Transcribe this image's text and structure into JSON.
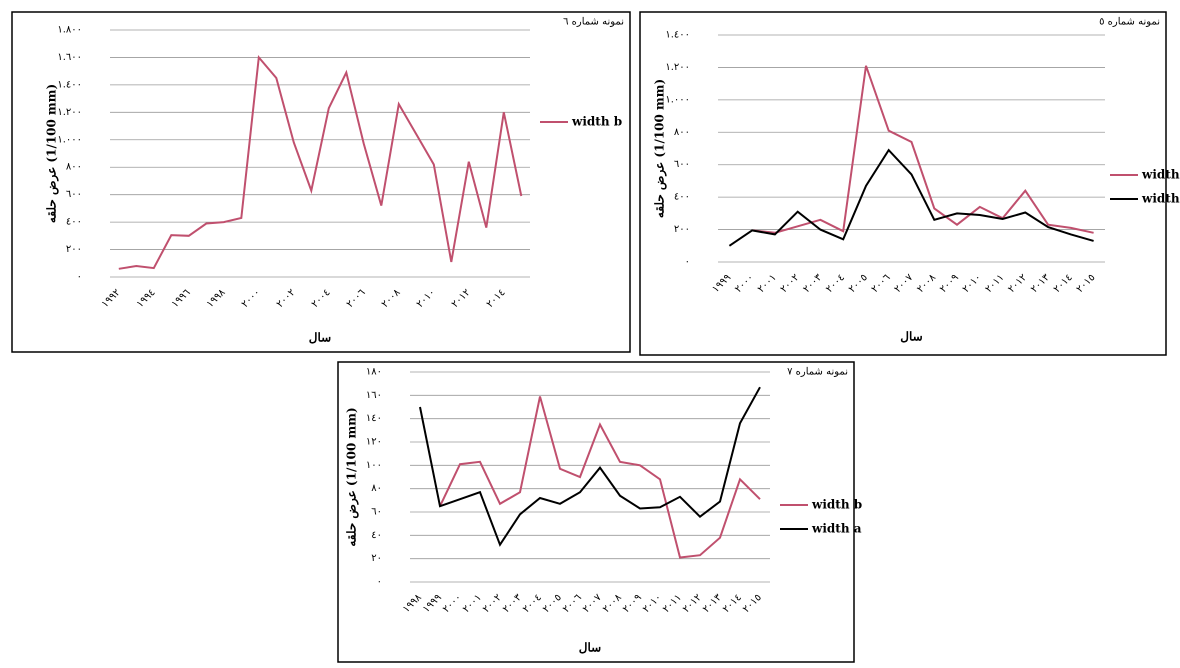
{
  "chart_data": [
    {
      "type": "line",
      "title": "نمونه شماره ٦",
      "xlabel": "سال",
      "ylabel": "عرض حلقه (1/100 mm)",
      "categories": [
        "١٩٩٢",
        null,
        "١٩٩٤",
        null,
        "١٩٩٦",
        null,
        "١٩٩٨",
        null,
        "٢٠٠٠",
        null,
        "٢٠٠٢",
        null,
        "٢٠٠٤",
        null,
        "٢٠٠٦",
        null,
        "٢٠٠٨",
        null,
        "٢٠١٠",
        null,
        "٢٠١٢",
        null,
        "٢٠١٤",
        null
      ],
      "series": [
        {
          "name": "width b",
          "color": "#c0506e",
          "values": [
            60,
            80,
            65,
            305,
            300,
            390,
            400,
            430,
            1600,
            1450,
            980,
            630,
            1230,
            1490,
            970,
            520,
            1260,
            1040,
            820,
            110,
            840,
            360,
            1200,
            590
          ]
        }
      ],
      "ylim": [
        0,
        1800
      ],
      "yticks": [
        {
          "value": 0,
          "label": "٠"
        },
        {
          "value": 200,
          "label": "٢٠٠"
        },
        {
          "value": 400,
          "label": "٤٠٠"
        },
        {
          "value": 600,
          "label": "٦٠٠"
        },
        {
          "value": 800,
          "label": "٨٠٠"
        },
        {
          "value": 1000,
          "label": "١.٠٠٠"
        },
        {
          "value": 1200,
          "label": "١.٢٠٠"
        },
        {
          "value": 1400,
          "label": "١.٤٠٠"
        },
        {
          "value": 1600,
          "label": "١.٦٠٠"
        },
        {
          "value": 1800,
          "label": "١.٨٠٠"
        }
      ],
      "grid": true
    },
    {
      "type": "line",
      "title": "نمونه شماره ٥",
      "xlabel": "سال",
      "ylabel": "عرض حلقه (1/100 mm)",
      "categories": [
        "١٩٩٩",
        "٢٠٠٠",
        "٢٠٠١",
        "٢٠٠٢",
        "٢٠٠٣",
        "٢٠٠٤",
        "٢٠٠٥",
        "٢٠٠٦",
        "٢٠٠٧",
        "٢٠٠٨",
        "٢٠٠٩",
        "٢٠١٠",
        "٢٠١١",
        "٢٠١٢",
        "٢٠١٣",
        "٢٠١٤",
        "٢٠١٥"
      ],
      "series": [
        {
          "name": "width b",
          "color": "#c0506e",
          "values": [
            null,
            195,
            180,
            220,
            260,
            190,
            1210,
            810,
            740,
            330,
            230,
            340,
            270,
            440,
            230,
            210,
            180
          ]
        },
        {
          "name": "width a",
          "color": "#000000",
          "values": [
            100,
            195,
            170,
            310,
            200,
            140,
            470,
            690,
            540,
            260,
            300,
            290,
            265,
            305,
            215,
            170,
            130
          ]
        }
      ],
      "ylim": [
        0,
        1400
      ],
      "yticks": [
        {
          "value": 0,
          "label": "٠"
        },
        {
          "value": 200,
          "label": "٢٠٠"
        },
        {
          "value": 400,
          "label": "٤٠٠"
        },
        {
          "value": 600,
          "label": "٦٠٠"
        },
        {
          "value": 800,
          "label": "٨٠٠"
        },
        {
          "value": 1000,
          "label": "١.٠٠٠"
        },
        {
          "value": 1200,
          "label": "١.٢٠٠"
        },
        {
          "value": 1400,
          "label": "١.٤٠٠"
        }
      ],
      "grid": true
    },
    {
      "type": "line",
      "title": "نمونه شماره ٧",
      "xlabel": "سال",
      "ylabel": "عرض حلقه (1/100 mm)",
      "categories": [
        "١٩٩٨",
        "١٩٩٩",
        "٢٠٠٠",
        "٢٠٠١",
        "٢٠٠٢",
        "٢٠٠٣",
        "٢٠٠٤",
        "٢٠٠٥",
        "٢٠٠٦",
        "٢٠٠٧",
        "٢٠٠٨",
        "٢٠٠٩",
        "٢٠١٠",
        "٢٠١١",
        "٢٠١٢",
        "٢٠١٣",
        "٢٠١٤",
        "٢٠١٥"
      ],
      "series": [
        {
          "name": "width b",
          "color": "#c0506e",
          "values": [
            null,
            65,
            101,
            103,
            67,
            77,
            159,
            97,
            90,
            135,
            103,
            100,
            88,
            21,
            23,
            38,
            88,
            71
          ]
        },
        {
          "name": "width a",
          "color": "#000000",
          "values": [
            150,
            65,
            71,
            77,
            32,
            58,
            72,
            67,
            77,
            98,
            74,
            63,
            64,
            73,
            56,
            69,
            136,
            167
          ]
        }
      ],
      "ylim": [
        0,
        180
      ],
      "yticks": [
        {
          "value": 0,
          "label": "٠"
        },
        {
          "value": 20,
          "label": "٢٠"
        },
        {
          "value": 40,
          "label": "٤٠"
        },
        {
          "value": 60,
          "label": "٦٠"
        },
        {
          "value": 80,
          "label": "٨٠"
        },
        {
          "value": 100,
          "label": "١٠٠"
        },
        {
          "value": 120,
          "label": "١٢٠"
        },
        {
          "value": 140,
          "label": "١٤٠"
        },
        {
          "value": 160,
          "label": "١٦٠"
        },
        {
          "value": 180,
          "label": "١٨٠"
        }
      ],
      "grid": true
    }
  ]
}
